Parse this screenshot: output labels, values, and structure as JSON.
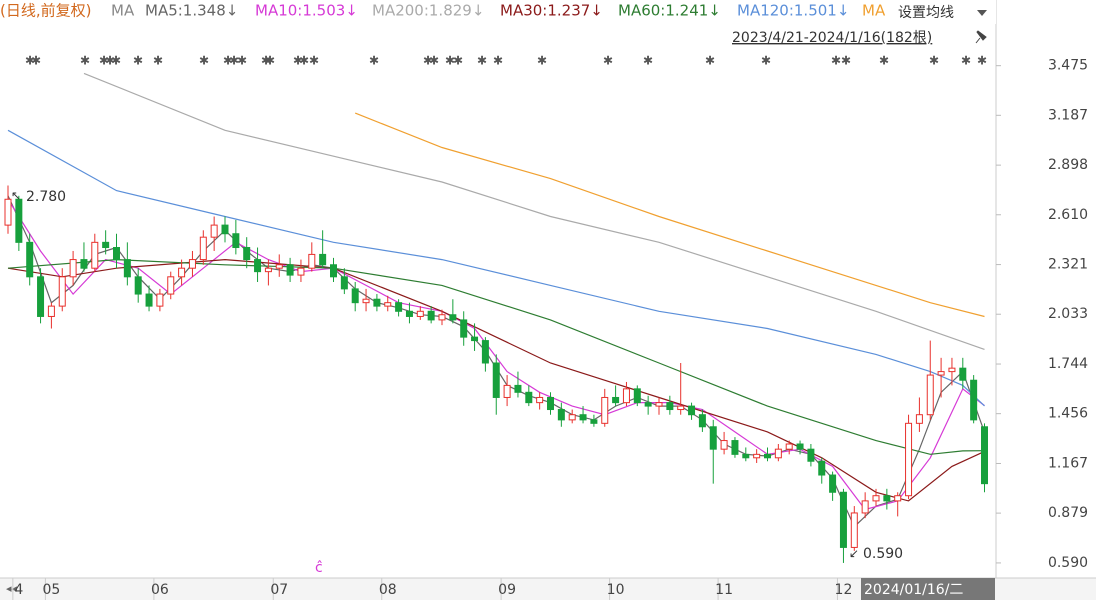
{
  "chart_data": {
    "type": "candlestick",
    "period_label": "(日线,前复权)",
    "ma_label": "MA",
    "settings_button": "设置均线",
    "range_label": "2023/4/21-2024/1/16(182根)",
    "cursor_label": "2024/01/16/二",
    "event_marker": "ĉ",
    "annotations": [
      "2.780",
      "0.590"
    ],
    "up_color": "#e8302c",
    "down_color": "#17a03c",
    "ylim": [
      0.52,
      3.74
    ],
    "yticks": [
      {
        "value": 0.59,
        "label": "0.590"
      },
      0.879,
      1.167,
      1.456,
      1.744,
      2.033,
      2.321,
      {
        "value": 2.61,
        "label": "2.610"
      },
      2.898,
      3.187,
      3.475
    ],
    "categories": [
      null,
      "4",
      null,
      null,
      "05",
      null,
      null,
      null,
      null,
      null,
      null,
      null,
      null,
      null,
      "06",
      null,
      null,
      null,
      null,
      null,
      null,
      null,
      null,
      null,
      null,
      "07",
      null,
      null,
      null,
      null,
      null,
      null,
      null,
      null,
      null,
      "08",
      null,
      null,
      null,
      null,
      null,
      null,
      null,
      null,
      null,
      null,
      "09",
      null,
      null,
      null,
      null,
      null,
      null,
      null,
      null,
      null,
      "10",
      null,
      null,
      null,
      null,
      null,
      null,
      null,
      null,
      null,
      "11",
      null,
      null,
      null,
      null,
      null,
      null,
      null,
      null,
      null,
      null,
      "12",
      null,
      null,
      null,
      null,
      null,
      null,
      null,
      null,
      null,
      null,
      null,
      null,
      null
    ],
    "ohlc": [
      [
        2.55,
        2.78,
        2.5,
        2.7
      ],
      [
        2.7,
        2.72,
        2.4,
        2.45
      ],
      [
        2.45,
        2.5,
        2.2,
        2.25
      ],
      [
        2.25,
        2.3,
        1.98,
        2.02
      ],
      [
        2.02,
        2.1,
        1.95,
        2.08
      ],
      [
        2.08,
        2.3,
        2.05,
        2.25
      ],
      [
        2.25,
        2.4,
        2.2,
        2.35
      ],
      [
        2.35,
        2.45,
        2.28,
        2.3
      ],
      [
        2.3,
        2.5,
        2.28,
        2.45
      ],
      [
        2.45,
        2.52,
        2.38,
        2.42
      ],
      [
        2.42,
        2.5,
        2.3,
        2.35
      ],
      [
        2.35,
        2.45,
        2.2,
        2.25
      ],
      [
        2.25,
        2.3,
        2.1,
        2.15
      ],
      [
        2.15,
        2.2,
        2.05,
        2.08
      ],
      [
        2.08,
        2.18,
        2.05,
        2.15
      ],
      [
        2.15,
        2.28,
        2.12,
        2.25
      ],
      [
        2.25,
        2.35,
        2.2,
        2.3
      ],
      [
        2.3,
        2.4,
        2.25,
        2.35
      ],
      [
        2.35,
        2.52,
        2.32,
        2.48
      ],
      [
        2.48,
        2.6,
        2.4,
        2.55
      ],
      [
        2.55,
        2.6,
        2.45,
        2.5
      ],
      [
        2.5,
        2.58,
        2.38,
        2.42
      ],
      [
        2.42,
        2.48,
        2.3,
        2.35
      ],
      [
        2.35,
        2.42,
        2.22,
        2.28
      ],
      [
        2.28,
        2.35,
        2.2,
        2.3
      ],
      [
        2.3,
        2.38,
        2.25,
        2.32
      ],
      [
        2.32,
        2.36,
        2.22,
        2.26
      ],
      [
        2.26,
        2.35,
        2.22,
        2.3
      ],
      [
        2.3,
        2.45,
        2.28,
        2.38
      ],
      [
        2.38,
        2.52,
        2.3,
        2.32
      ],
      [
        2.32,
        2.36,
        2.22,
        2.25
      ],
      [
        2.25,
        2.3,
        2.15,
        2.18
      ],
      [
        2.18,
        2.22,
        2.05,
        2.1
      ],
      [
        2.1,
        2.18,
        2.05,
        2.12
      ],
      [
        2.12,
        2.15,
        2.05,
        2.08
      ],
      [
        2.08,
        2.14,
        2.05,
        2.1
      ],
      [
        2.1,
        2.12,
        2.02,
        2.05
      ],
      [
        2.05,
        2.1,
        1.98,
        2.02
      ],
      [
        2.02,
        2.08,
        2.0,
        2.05
      ],
      [
        2.05,
        2.08,
        1.98,
        2.0
      ],
      [
        2.0,
        2.06,
        1.97,
        2.03
      ],
      [
        2.03,
        2.12,
        1.98,
        2.0
      ],
      [
        2.0,
        2.05,
        1.85,
        1.9
      ],
      [
        1.9,
        1.98,
        1.82,
        1.88
      ],
      [
        1.88,
        1.9,
        1.7,
        1.75
      ],
      [
        1.75,
        1.8,
        1.45,
        1.55
      ],
      [
        1.55,
        1.68,
        1.5,
        1.62
      ],
      [
        1.62,
        1.7,
        1.55,
        1.58
      ],
      [
        1.58,
        1.62,
        1.5,
        1.52
      ],
      [
        1.52,
        1.58,
        1.48,
        1.55
      ],
      [
        1.55,
        1.58,
        1.45,
        1.48
      ],
      [
        1.48,
        1.52,
        1.38,
        1.42
      ],
      [
        1.42,
        1.48,
        1.4,
        1.45
      ],
      [
        1.45,
        1.5,
        1.4,
        1.42
      ],
      [
        1.42,
        1.45,
        1.38,
        1.4
      ],
      [
        1.4,
        1.6,
        1.38,
        1.55
      ],
      [
        1.55,
        1.62,
        1.5,
        1.52
      ],
      [
        1.52,
        1.64,
        1.5,
        1.6
      ],
      [
        1.6,
        1.62,
        1.5,
        1.52
      ],
      [
        1.52,
        1.56,
        1.45,
        1.5
      ],
      [
        1.5,
        1.55,
        1.45,
        1.52
      ],
      [
        1.52,
        1.56,
        1.45,
        1.48
      ],
      [
        1.48,
        1.75,
        1.45,
        1.5
      ],
      [
        1.5,
        1.52,
        1.42,
        1.45
      ],
      [
        1.45,
        1.48,
        1.35,
        1.38
      ],
      [
        1.38,
        1.42,
        1.05,
        1.25
      ],
      [
        1.25,
        1.35,
        1.22,
        1.3
      ],
      [
        1.3,
        1.32,
        1.2,
        1.22
      ],
      [
        1.22,
        1.26,
        1.18,
        1.2
      ],
      [
        1.2,
        1.25,
        1.17,
        1.22
      ],
      [
        1.22,
        1.26,
        1.18,
        1.2
      ],
      [
        1.2,
        1.28,
        1.18,
        1.25
      ],
      [
        1.25,
        1.3,
        1.22,
        1.28
      ],
      [
        1.28,
        1.3,
        1.22,
        1.25
      ],
      [
        1.25,
        1.28,
        1.15,
        1.18
      ],
      [
        1.18,
        1.2,
        1.05,
        1.1
      ],
      [
        1.1,
        1.12,
        0.95,
        1.0
      ],
      [
        1.0,
        1.02,
        0.59,
        0.68
      ],
      [
        0.68,
        0.92,
        0.66,
        0.88
      ],
      [
        0.88,
        1.0,
        0.85,
        0.95
      ],
      [
        0.95,
        1.02,
        0.92,
        0.98
      ],
      [
        0.98,
        1.02,
        0.9,
        0.95
      ],
      [
        0.95,
        1.0,
        0.86,
        0.98
      ],
      [
        0.98,
        1.45,
        0.96,
        1.4
      ],
      [
        1.4,
        1.55,
        1.35,
        1.45
      ],
      [
        1.45,
        1.88,
        1.42,
        1.68
      ],
      [
        1.68,
        1.78,
        1.55,
        1.7
      ],
      [
        1.7,
        1.78,
        1.62,
        1.72
      ],
      [
        1.72,
        1.78,
        1.6,
        1.65
      ],
      [
        1.65,
        1.68,
        1.4,
        1.42
      ],
      [
        1.38,
        1.4,
        1.0,
        1.05
      ]
    ],
    "ma_series": [
      {
        "name": "MA5:1.348↓",
        "color": "#666666",
        "x": [
          0,
          2,
          4,
          6,
          8,
          10,
          12,
          14,
          16,
          18,
          20,
          22,
          24,
          26,
          28,
          30,
          32,
          34,
          36,
          38,
          40,
          42,
          44,
          46,
          48,
          50,
          52,
          54,
          56,
          58,
          60,
          62,
          64,
          66,
          68,
          70,
          72,
          74,
          76,
          78,
          80,
          82,
          84,
          86,
          88,
          90
        ],
        "values": [
          2.72,
          2.45,
          2.1,
          2.2,
          2.38,
          2.42,
          2.25,
          2.12,
          2.25,
          2.4,
          2.52,
          2.4,
          2.3,
          2.28,
          2.32,
          2.3,
          2.18,
          2.1,
          2.07,
          2.03,
          2.02,
          1.96,
          1.82,
          1.62,
          1.56,
          1.52,
          1.45,
          1.42,
          1.5,
          1.55,
          1.5,
          1.5,
          1.42,
          1.28,
          1.22,
          1.21,
          1.25,
          1.22,
          1.08,
          0.8,
          0.92,
          0.96,
          1.25,
          1.58,
          1.7,
          1.348
        ]
      },
      {
        "name": "MA10:1.503↓",
        "color": "#d63ad6",
        "x": [
          0,
          3,
          6,
          9,
          12,
          15,
          18,
          21,
          24,
          27,
          30,
          33,
          36,
          40,
          43,
          46,
          49,
          52,
          55,
          58,
          61,
          64,
          67,
          70,
          73,
          76,
          79,
          82,
          85,
          88,
          90
        ],
        "values": [
          2.7,
          2.4,
          2.15,
          2.35,
          2.3,
          2.15,
          2.3,
          2.45,
          2.35,
          2.28,
          2.3,
          2.2,
          2.1,
          2.05,
          1.95,
          1.7,
          1.58,
          1.5,
          1.45,
          1.52,
          1.52,
          1.48,
          1.35,
          1.22,
          1.25,
          1.15,
          0.9,
          0.95,
          1.2,
          1.6,
          1.503
        ]
      },
      {
        "name": "MA200:1.829↓",
        "color": "#aaaaaa",
        "x": [
          7,
          20,
          30,
          40,
          50,
          60,
          70,
          80,
          90
        ],
        "values": [
          3.43,
          3.1,
          2.95,
          2.8,
          2.6,
          2.45,
          2.25,
          2.05,
          1.829
        ]
      },
      {
        "name": "MA30:1.237↓",
        "color": "#8b1a1a",
        "x": [
          0,
          5,
          10,
          20,
          30,
          40,
          50,
          60,
          70,
          75,
          80,
          83,
          87,
          90
        ],
        "values": [
          2.3,
          2.25,
          2.3,
          2.35,
          2.3,
          2.05,
          1.75,
          1.55,
          1.35,
          1.2,
          1.0,
          0.95,
          1.15,
          1.237
        ]
      },
      {
        "name": "MA60:1.241↓",
        "color": "#2e7d32",
        "x": [
          0,
          10,
          20,
          30,
          40,
          50,
          60,
          70,
          80,
          85,
          88,
          90
        ],
        "values": [
          2.3,
          2.35,
          2.32,
          2.3,
          2.2,
          2.0,
          1.75,
          1.5,
          1.3,
          1.22,
          1.24,
          1.241
        ]
      },
      {
        "name": "MA120:1.501↓",
        "color": "#5b8fd9",
        "x": [
          0,
          10,
          20,
          30,
          40,
          50,
          60,
          70,
          80,
          85,
          88,
          90
        ],
        "values": [
          3.1,
          2.75,
          2.6,
          2.45,
          2.35,
          2.2,
          2.05,
          1.95,
          1.8,
          1.7,
          1.62,
          1.501
        ]
      },
      {
        "name": "MA",
        "color": "#f0a030",
        "x": [
          32,
          40,
          50,
          60,
          70,
          80,
          85,
          90
        ],
        "values": [
          3.2,
          3.0,
          2.82,
          2.6,
          2.4,
          2.2,
          2.1,
          2.02
        ]
      }
    ]
  }
}
